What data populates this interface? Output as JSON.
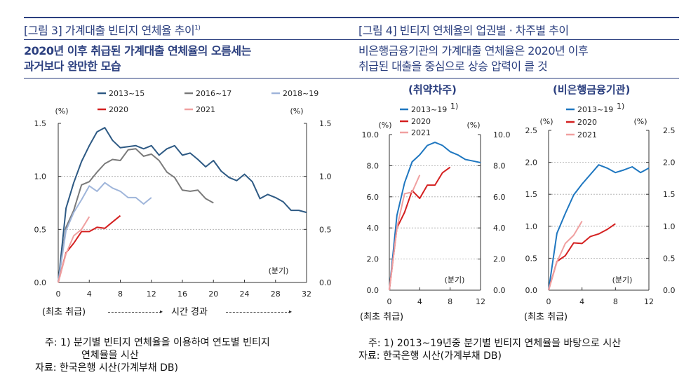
{
  "colors": {
    "heading": "#2b3f7f",
    "s2013_15": "#2e5a84",
    "s2016_17": "#7a7a7a",
    "s2018_19": "#9fb5da",
    "s2020": "#d42020",
    "s2021": "#f0a0a0",
    "s2013_19": "#1f77c0"
  },
  "left": {
    "title": "[그림 3] 가계대출 빈티지 연체율 추이",
    "title_sup": "1)",
    "subtitle_lines": [
      "2020년 이후 취급된 가계대출 연체율의 오름세는",
      "과거보다 완만한 모습"
    ],
    "x_origin_label": "(최초 취급)",
    "time_label": "시간 경과",
    "note_line1": "주: 1) 분기별 빈티지 연체율을 이용하여 연도별 빈티지",
    "note_line2": "연체율을 시산",
    "source": "자료: 한국은행 시산(가계부채 DB)"
  },
  "right": {
    "title": "[그림 4] 빈티지 연체율의 업권별 · 차주별 추이",
    "subtitle_lines": [
      "비은행금융기관의 가계대출 연체율은 2020년 이후",
      "취급된 대출을 중심으로 상승 압력이 클 것"
    ],
    "x_origin_label_1": "(최초 취급)",
    "x_origin_label_2": "(최초 취급)",
    "note": "주: 1) 2013~19년중 분기별 빈티지 연체율을 바탕으로 시산",
    "source": "자료: 한국은행 시산(가계부채 DB)"
  },
  "chart_data": [
    {
      "type": "line",
      "title": "",
      "ylabel_left": "(%)",
      "ylabel_right": "(%)",
      "xlabel": "(분기)",
      "xlim": [
        0,
        32
      ],
      "ylim": [
        0,
        1.5
      ],
      "xticks": [
        0,
        4,
        8,
        12,
        16,
        20,
        24,
        28,
        32
      ],
      "yticks": [
        "0.0",
        "0.5",
        "1.0",
        "1.5"
      ],
      "grid": "horizontal dotted",
      "legend": "top",
      "series": [
        {
          "name": "2013~15",
          "color": "#2e5a84",
          "values": [
            0,
            0.7,
            0.94,
            1.14,
            1.29,
            1.42,
            1.46,
            1.34,
            1.27,
            1.28,
            1.29,
            1.26,
            1.29,
            1.2,
            1.26,
            1.29,
            1.2,
            1.22,
            1.16,
            1.09,
            1.15,
            1.05,
            0.99,
            0.96,
            1.02,
            0.95,
            0.79,
            0.83,
            0.8,
            0.76,
            0.68,
            0.68,
            0.66
          ]
        },
        {
          "name": "2016~17",
          "color": "#7a7a7a",
          "values": [
            0,
            0.52,
            0.68,
            0.92,
            0.95,
            1.04,
            1.12,
            1.16,
            1.15,
            1.25,
            1.26,
            1.19,
            1.21,
            1.15,
            1.04,
            0.99,
            0.87,
            0.86,
            0.87,
            0.79,
            0.75
          ]
        },
        {
          "name": "2018~19",
          "color": "#9fb5da",
          "values": [
            0,
            0.49,
            0.66,
            0.78,
            0.91,
            0.86,
            0.94,
            0.89,
            0.86,
            0.8,
            0.8,
            0.74,
            0.8
          ]
        },
        {
          "name": "2020",
          "color": "#d42020",
          "values": [
            0,
            0.28,
            0.37,
            0.48,
            0.48,
            0.52,
            0.51,
            0.57,
            0.63
          ]
        },
        {
          "name": "2021",
          "color": "#f0a0a0",
          "values": [
            0,
            0.27,
            0.44,
            0.5,
            0.62
          ]
        }
      ]
    },
    {
      "type": "line",
      "title": "(취약차주)",
      "ylabel_left": "(%)",
      "ylabel_right": "(%)",
      "xlabel": "(분기)",
      "xlim": [
        0,
        12
      ],
      "ylim": [
        0,
        10
      ],
      "xticks": [
        0,
        4,
        8,
        12
      ],
      "yticks": [
        "0.0",
        "2.0",
        "4.0",
        "6.0",
        "8.0",
        "10.0"
      ],
      "grid": "horizontal dotted",
      "legend": "top",
      "series": [
        {
          "name": "2013~19",
          "name_sup": "1)",
          "color": "#1f77c0",
          "values": [
            0,
            4.8,
            6.9,
            8.25,
            8.7,
            9.3,
            9.5,
            9.3,
            8.9,
            8.7,
            8.4,
            8.3,
            8.2
          ]
        },
        {
          "name": "2020",
          "color": "#d42020",
          "values": [
            0,
            4.0,
            5.0,
            6.4,
            5.9,
            6.75,
            6.75,
            7.55,
            7.9
          ]
        },
        {
          "name": "2021",
          "color": "#f0a0a0",
          "values": [
            0,
            4.0,
            6.2,
            6.3,
            7.4
          ]
        }
      ]
    },
    {
      "type": "line",
      "title": "(비은행금융기관)",
      "ylabel_left": "(%)",
      "ylabel_right": "(%)",
      "xlabel": "(분기)",
      "xlim": [
        0,
        12
      ],
      "ylim": [
        0,
        2.5
      ],
      "xticks": [
        0,
        4,
        8,
        12
      ],
      "yticks": [
        "0.0",
        "0.5",
        "1.0",
        "1.5",
        "2.0",
        "2.5"
      ],
      "grid": "horizontal dotted",
      "legend": "top",
      "series": [
        {
          "name": "2013~19",
          "name_sup": "1)",
          "color": "#1f77c0",
          "values": [
            0,
            0.89,
            1.2,
            1.49,
            1.66,
            1.81,
            1.96,
            1.91,
            1.84,
            1.88,
            1.93,
            1.84,
            1.91
          ]
        },
        {
          "name": "2020",
          "color": "#d42020",
          "values": [
            0,
            0.45,
            0.54,
            0.74,
            0.73,
            0.84,
            0.88,
            0.95,
            1.04
          ]
        },
        {
          "name": "2021",
          "color": "#f0a0a0",
          "values": [
            0,
            0.44,
            0.73,
            0.86,
            1.08
          ]
        }
      ]
    }
  ]
}
